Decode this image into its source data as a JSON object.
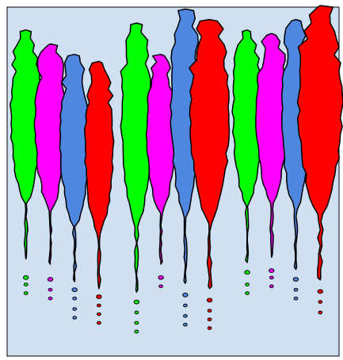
{
  "chart_data": {
    "type": "violin",
    "title": "",
    "xlabel": "",
    "ylabel": "",
    "ylim": [
      0,
      1
    ],
    "grid": false,
    "legend": "none",
    "background": "#cfe0f2",
    "groups": [
      {
        "violins": [
          {
            "color": "#00ff00",
            "top": 0.93,
            "bottom": 0.285,
            "width": 0.09,
            "outliers": [
              0.225,
              0.205,
              0.18
            ]
          },
          {
            "color": "#ff00ff",
            "top": 0.89,
            "bottom": 0.27,
            "width": 0.09,
            "outliers": [
              0.22,
              0.19,
              0.165
            ]
          },
          {
            "color": "#4f86e0",
            "top": 0.86,
            "bottom": 0.22,
            "width": 0.085,
            "outliers": [
              0.19,
              0.165,
              0.135,
              0.11
            ]
          },
          {
            "color": "#ff0000",
            "top": 0.84,
            "bottom": 0.2,
            "width": 0.085,
            "outliers": [
              0.17,
              0.145,
              0.12,
              0.095
            ]
          }
        ]
      },
      {
        "violins": [
          {
            "color": "#00ff00",
            "top": 0.95,
            "bottom": 0.19,
            "width": 0.09,
            "outliers": [
              0.155,
              0.125,
              0.095,
              0.07
            ]
          },
          {
            "color": "#ff00ff",
            "top": 0.86,
            "bottom": 0.27,
            "width": 0.085,
            "outliers": [
              0.225,
              0.2
            ]
          },
          {
            "color": "#4f86e0",
            "top": 0.99,
            "bottom": 0.215,
            "width": 0.085,
            "outliers": [
              0.175,
              0.145,
              0.115,
              0.09
            ]
          },
          {
            "color": "#ff0000",
            "top": 0.96,
            "bottom": 0.2,
            "width": 0.115,
            "outliers": [
              0.16,
              0.13,
              0.105,
              0.08
            ]
          }
        ]
      },
      {
        "violins": [
          {
            "color": "#00ff00",
            "top": 0.93,
            "bottom": 0.275,
            "width": 0.085,
            "outliers": [
              0.24,
              0.205,
              0.18
            ]
          },
          {
            "color": "#ff00ff",
            "top": 0.92,
            "bottom": 0.29,
            "width": 0.09,
            "outliers": [
              0.245,
              0.225,
              0.2
            ]
          },
          {
            "color": "#4f86e0",
            "top": 0.96,
            "bottom": 0.255,
            "width": 0.085,
            "outliers": [
              0.22,
              0.19,
              0.165
            ]
          },
          {
            "color": "#ff0000",
            "top": 1.0,
            "bottom": 0.225,
            "width": 0.13,
            "outliers": [
              0.185,
              0.155,
              0.125
            ]
          }
        ]
      }
    ]
  }
}
